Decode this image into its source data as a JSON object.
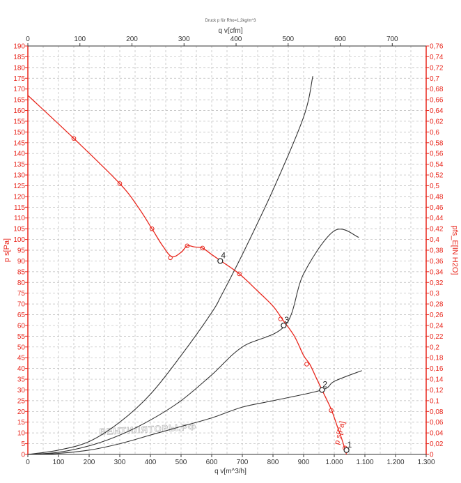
{
  "chart_data": {
    "type": "line",
    "title": "Druck p für Rho=1,2kg/m^3",
    "watermark": "ВЕНТИЛЯТОРЫ.РФ",
    "x_axis": {
      "label": "q v[m^3/h]",
      "range": [
        0,
        1.3
      ],
      "ticks": [
        "0",
        "100",
        "200",
        "300",
        "400",
        "500",
        "600",
        "700",
        "800",
        "900",
        "1.000",
        "1.100",
        "1.200",
        "1.300"
      ]
    },
    "x2_axis": {
      "label": "q v[cfm]",
      "ticks": [
        "0",
        "100",
        "200",
        "300",
        "400",
        "500",
        "600",
        "700"
      ]
    },
    "y_axis": {
      "label": "p s[Pa]",
      "range": [
        0,
        190
      ],
      "ticks": [
        "0",
        "5",
        "10",
        "15",
        "20",
        "25",
        "30",
        "35",
        "40",
        "45",
        "50",
        "55",
        "60",
        "65",
        "70",
        "75",
        "80",
        "85",
        "90",
        "95",
        "100",
        "105",
        "110",
        "115",
        "120",
        "125",
        "130",
        "135",
        "140",
        "145",
        "150",
        "155",
        "160",
        "165",
        "170",
        "175",
        "180",
        "185",
        "190"
      ]
    },
    "y2_axis": {
      "label": "pfs_E[IN H2O]",
      "ticks": [
        "0",
        "0,02",
        "0,04",
        "0,06",
        "0,08",
        "0,1",
        "0,12",
        "0,14",
        "0,16",
        "0,18",
        "0,2",
        "0,22",
        "0,24",
        "0,26",
        "0,28",
        "0,3",
        "0,32",
        "0,34",
        "0,36",
        "0,38",
        "0,4",
        "0,42",
        "0,44",
        "0,46",
        "0,48",
        "0,5",
        "0,52",
        "0,54",
        "0,56",
        "0,58",
        "0,6",
        "0,62",
        "0,64",
        "0,66",
        "0,68",
        "0,7",
        "0,72",
        "0,74",
        "0,76"
      ]
    },
    "grid": true,
    "series": [
      {
        "name": "p s[Pa]",
        "color": "#e8261c",
        "role": "fan-curve",
        "points": [
          [
            0,
            167
          ],
          [
            150,
            147
          ],
          [
            300,
            126
          ],
          [
            360,
            115
          ],
          [
            405,
            105
          ],
          [
            440,
            97
          ],
          [
            470,
            92
          ],
          [
            500,
            94
          ],
          [
            520,
            97
          ],
          [
            545,
            96.5
          ],
          [
            570,
            96
          ],
          [
            600,
            93
          ],
          [
            630,
            90
          ],
          [
            690,
            84
          ],
          [
            750,
            76
          ],
          [
            800,
            69
          ],
          [
            830,
            63
          ],
          [
            870,
            55
          ],
          [
            900,
            46
          ],
          [
            920,
            42
          ],
          [
            940,
            36
          ],
          [
            960,
            30
          ],
          [
            990,
            21
          ],
          [
            1010,
            13
          ],
          [
            1025,
            7
          ],
          [
            1040,
            0
          ]
        ],
        "markers": [
          [
            150,
            147
          ],
          [
            300,
            126
          ],
          [
            405,
            105
          ],
          [
            465,
            91.5
          ],
          [
            520,
            97
          ],
          [
            570,
            96
          ],
          [
            690,
            84
          ],
          [
            825,
            63
          ],
          [
            910,
            42
          ],
          [
            990,
            20.5
          ],
          [
            1035,
            3
          ]
        ]
      },
      {
        "name": "",
        "color": "#333333",
        "role": "system-curve",
        "points": [
          [
            0,
            0
          ],
          [
            100,
            2
          ],
          [
            200,
            6
          ],
          [
            300,
            15
          ],
          [
            400,
            28
          ],
          [
            500,
            46
          ],
          [
            600,
            66
          ],
          [
            630,
            73.5
          ],
          [
            700,
            93
          ],
          [
            800,
            123
          ],
          [
            900,
            157
          ],
          [
            930,
            176
          ]
        ]
      },
      {
        "name": "",
        "color": "#333333",
        "role": "system-curve",
        "points": [
          [
            0,
            0
          ],
          [
            100,
            1
          ],
          [
            200,
            4
          ],
          [
            300,
            9
          ],
          [
            400,
            16
          ],
          [
            500,
            25
          ],
          [
            600,
            37
          ],
          [
            700,
            50
          ],
          [
            840,
            60
          ],
          [
            900,
            84
          ],
          [
            1000,
            104
          ],
          [
            1080,
            101
          ]
        ]
      },
      {
        "name": "",
        "color": "#333333",
        "role": "system-curve",
        "points": [
          [
            0,
            0
          ],
          [
            100,
            0.5
          ],
          [
            200,
            2
          ],
          [
            300,
            5
          ],
          [
            400,
            9
          ],
          [
            500,
            13
          ],
          [
            600,
            17
          ],
          [
            700,
            22
          ],
          [
            800,
            25
          ],
          [
            960,
            30
          ],
          [
            1000,
            34
          ],
          [
            1090,
            39
          ]
        ]
      }
    ],
    "operating_points": [
      {
        "label": "1",
        "x": 1040,
        "y": 2
      },
      {
        "label": "2",
        "x": 960,
        "y": 30
      },
      {
        "label": "3",
        "x": 835,
        "y": 60
      },
      {
        "label": "4",
        "x": 628,
        "y": 90
      }
    ]
  }
}
